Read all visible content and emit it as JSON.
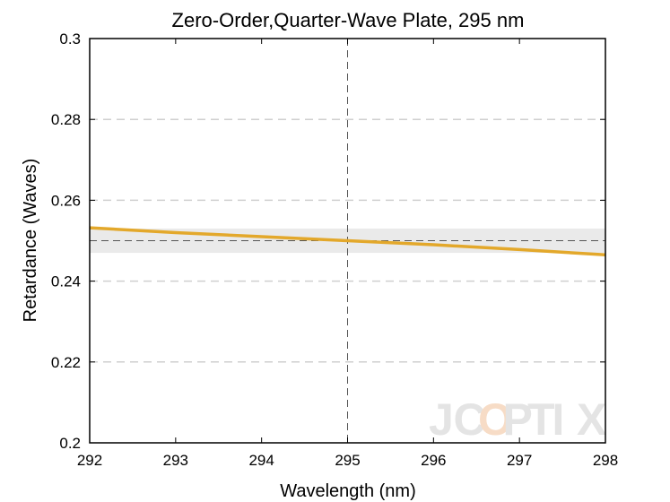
{
  "chart_data": {
    "type": "line",
    "title": "Zero-Order,Quarter-Wave Plate, 295 nm",
    "xlabel": "Wavelength (nm)",
    "ylabel": "Retardance (Waves)",
    "xlim": [
      292,
      298
    ],
    "ylim": [
      0.2,
      0.3
    ],
    "xticks": [
      "292",
      "293",
      "294",
      "295",
      "296",
      "297",
      "298"
    ],
    "yticks": [
      "0.2",
      "0.22",
      "0.24",
      "0.26",
      "0.28",
      "0.3"
    ],
    "grid": "horizontal dashed",
    "design_wavelength": 295,
    "target_retardance": 0.25,
    "tolerance_band": [
      0.247,
      0.253
    ],
    "series": [
      {
        "color": "#E3A82B",
        "x": [
          292,
          293,
          294,
          295,
          296,
          297,
          298
        ],
        "y": [
          0.2532,
          0.252,
          0.251,
          0.25,
          0.249,
          0.2478,
          0.2465
        ]
      }
    ],
    "watermark": "JCOPTIX"
  }
}
